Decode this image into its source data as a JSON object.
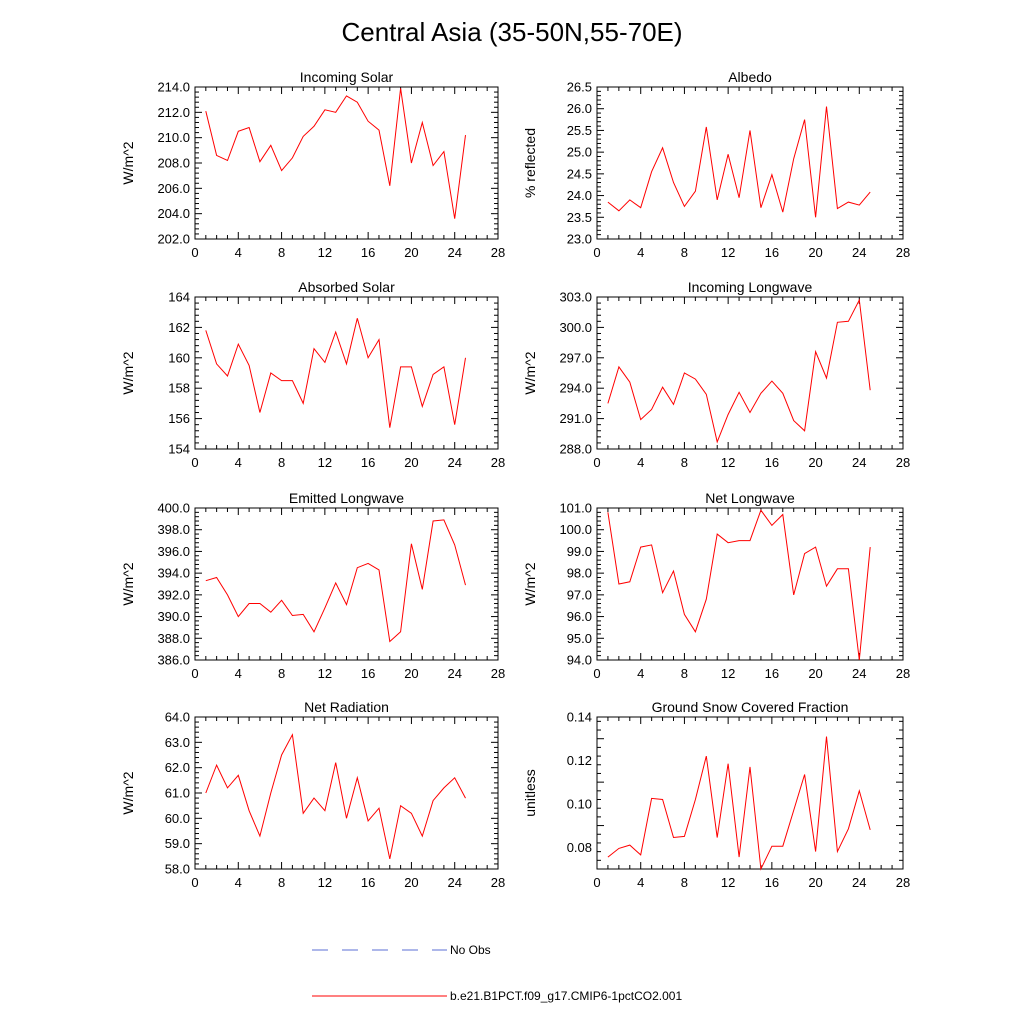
{
  "figure": {
    "title": "Central Asia (35-50N,55-70E)"
  },
  "colors": {
    "series": "#ff0000",
    "obs": "#5b6fd6",
    "axis": "#000000"
  },
  "chart_data": [
    {
      "type": "line",
      "title": "Incoming Solar",
      "xlabel": "",
      "ylabel": "W/m^2",
      "xlim": [
        0,
        28
      ],
      "ylim": [
        202,
        214
      ],
      "xticks": [
        0,
        4,
        8,
        12,
        16,
        20,
        24,
        28
      ],
      "yticks": [
        "202.0",
        "204.0",
        "206.0",
        "208.0",
        "210.0",
        "212.0",
        "214.0"
      ],
      "x": [
        1,
        2,
        3,
        4,
        5,
        6,
        7,
        8,
        9,
        10,
        11,
        12,
        13,
        14,
        15,
        16,
        17,
        18,
        19,
        20,
        21,
        22,
        23,
        24,
        25
      ],
      "series": [
        {
          "name": "b.e21.B1PCT.f09_g17.CMIP6-1pctCO2.001",
          "values": [
            212.1,
            208.6,
            208.2,
            210.5,
            210.8,
            208.1,
            209.4,
            207.4,
            208.4,
            210.1,
            210.9,
            212.2,
            212.0,
            213.3,
            212.8,
            211.3,
            210.6,
            206.2,
            213.9,
            208.0,
            211.2,
            207.8,
            208.9,
            203.6,
            210.2
          ]
        }
      ]
    },
    {
      "type": "line",
      "title": "Albedo",
      "xlabel": "",
      "ylabel": "% reflected",
      "xlim": [
        0,
        28
      ],
      "ylim": [
        23,
        26.5
      ],
      "xticks": [
        0,
        4,
        8,
        12,
        16,
        20,
        24,
        28
      ],
      "yticks": [
        "23.0",
        "23.5",
        "24.0",
        "24.5",
        "25.0",
        "25.5",
        "26.0",
        "26.5"
      ],
      "x": [
        1,
        2,
        3,
        4,
        5,
        6,
        7,
        8,
        9,
        10,
        11,
        12,
        13,
        14,
        15,
        16,
        17,
        18,
        19,
        20,
        21,
        22,
        23,
        24,
        25
      ],
      "series": [
        {
          "name": "b.e21.B1PCT.f09_g17.CMIP6-1pctCO2.001",
          "values": [
            23.85,
            23.65,
            23.9,
            23.72,
            24.55,
            25.1,
            24.3,
            23.75,
            24.1,
            25.58,
            23.9,
            24.95,
            23.95,
            25.5,
            23.72,
            24.48,
            23.62,
            24.85,
            25.75,
            23.5,
            26.05,
            23.7,
            23.85,
            23.78,
            24.08
          ]
        }
      ]
    },
    {
      "type": "line",
      "title": "Absorbed Solar",
      "xlabel": "",
      "ylabel": "W/m^2",
      "xlim": [
        0,
        28
      ],
      "ylim": [
        154,
        164
      ],
      "xticks": [
        0,
        4,
        8,
        12,
        16,
        20,
        24,
        28
      ],
      "yticks": [
        "154",
        "156",
        "158",
        "160",
        "162",
        "164"
      ],
      "x": [
        1,
        2,
        3,
        4,
        5,
        6,
        7,
        8,
        9,
        10,
        11,
        12,
        13,
        14,
        15,
        16,
        17,
        18,
        19,
        20,
        21,
        22,
        23,
        24,
        25
      ],
      "series": [
        {
          "name": "b.e21.B1PCT.f09_g17.CMIP6-1pctCO2.001",
          "values": [
            161.8,
            159.6,
            158.8,
            160.9,
            159.5,
            156.4,
            159.0,
            158.5,
            158.5,
            157.0,
            160.6,
            159.7,
            161.7,
            159.6,
            162.6,
            160.0,
            161.2,
            155.4,
            159.4,
            159.4,
            156.8,
            158.9,
            159.4,
            155.6,
            160.0
          ]
        }
      ]
    },
    {
      "type": "line",
      "title": "Incoming Longwave",
      "xlabel": "",
      "ylabel": "W/m^2",
      "xlim": [
        0,
        28
      ],
      "ylim": [
        288,
        303
      ],
      "xticks": [
        0,
        4,
        8,
        12,
        16,
        20,
        24,
        28
      ],
      "yticks": [
        "288.0",
        "291.0",
        "294.0",
        "297.0",
        "300.0",
        "303.0"
      ],
      "x": [
        1,
        2,
        3,
        4,
        5,
        6,
        7,
        8,
        9,
        10,
        11,
        12,
        13,
        14,
        15,
        16,
        17,
        18,
        19,
        20,
        21,
        22,
        23,
        24,
        25
      ],
      "series": [
        {
          "name": "b.e21.B1PCT.f09_g17.CMIP6-1pctCO2.001",
          "values": [
            292.5,
            296.1,
            294.6,
            290.9,
            291.9,
            294.1,
            292.4,
            295.5,
            294.9,
            293.4,
            288.7,
            291.4,
            293.6,
            291.6,
            293.5,
            294.7,
            293.5,
            290.8,
            289.8,
            297.6,
            295.0,
            300.5,
            300.6,
            302.7,
            293.8
          ]
        }
      ]
    },
    {
      "type": "line",
      "title": "Emitted Longwave",
      "xlabel": "",
      "ylabel": "W/m^2",
      "xlim": [
        0,
        28
      ],
      "ylim": [
        386,
        400
      ],
      "xticks": [
        0,
        4,
        8,
        12,
        16,
        20,
        24,
        28
      ],
      "yticks": [
        "386.0",
        "388.0",
        "390.0",
        "392.0",
        "394.0",
        "396.0",
        "398.0",
        "400.0"
      ],
      "x": [
        1,
        2,
        3,
        4,
        5,
        6,
        7,
        8,
        9,
        10,
        11,
        12,
        13,
        14,
        15,
        16,
        17,
        18,
        19,
        20,
        21,
        22,
        23,
        24,
        25
      ],
      "series": [
        {
          "name": "b.e21.B1PCT.f09_g17.CMIP6-1pctCO2.001",
          "values": [
            393.3,
            393.6,
            392.0,
            390.0,
            391.2,
            391.2,
            390.4,
            391.5,
            390.1,
            390.2,
            388.6,
            390.8,
            393.1,
            391.1,
            394.5,
            394.9,
            394.3,
            387.7,
            388.6,
            396.7,
            392.5,
            398.8,
            398.9,
            396.6,
            392.9
          ]
        }
      ]
    },
    {
      "type": "line",
      "title": "Net Longwave",
      "xlabel": "",
      "ylabel": "W/m^2",
      "xlim": [
        0,
        28
      ],
      "ylim": [
        94,
        101
      ],
      "xticks": [
        0,
        4,
        8,
        12,
        16,
        20,
        24,
        28
      ],
      "yticks": [
        "94.0",
        "95.0",
        "96.0",
        "97.0",
        "98.0",
        "99.0",
        "100.0",
        "101.0"
      ],
      "x": [
        1,
        2,
        3,
        4,
        5,
        6,
        7,
        8,
        9,
        10,
        11,
        12,
        13,
        14,
        15,
        16,
        17,
        18,
        19,
        20,
        21,
        22,
        23,
        24,
        25
      ],
      "series": [
        {
          "name": "b.e21.B1PCT.f09_g17.CMIP6-1pctCO2.001",
          "values": [
            100.8,
            97.5,
            97.6,
            99.2,
            99.3,
            97.1,
            98.1,
            96.1,
            95.3,
            96.8,
            99.8,
            99.4,
            99.5,
            99.5,
            100.9,
            100.2,
            100.7,
            97.0,
            98.9,
            99.2,
            97.4,
            98.2,
            98.2,
            94.0,
            99.2
          ]
        }
      ]
    },
    {
      "type": "line",
      "title": "Net Radiation",
      "xlabel": "",
      "ylabel": "W/m^2",
      "xlim": [
        0,
        28
      ],
      "ylim": [
        58,
        64
      ],
      "xticks": [
        0,
        4,
        8,
        12,
        16,
        20,
        24,
        28
      ],
      "yticks": [
        "58.0",
        "59.0",
        "60.0",
        "61.0",
        "62.0",
        "63.0",
        "64.0"
      ],
      "x": [
        1,
        2,
        3,
        4,
        5,
        6,
        7,
        8,
        9,
        10,
        11,
        12,
        13,
        14,
        15,
        16,
        17,
        18,
        19,
        20,
        21,
        22,
        23,
        24,
        25
      ],
      "series": [
        {
          "name": "b.e21.B1PCT.f09_g17.CMIP6-1pctCO2.001",
          "values": [
            61.0,
            62.1,
            61.2,
            61.7,
            60.3,
            59.3,
            61.0,
            62.5,
            63.3,
            60.2,
            60.8,
            60.3,
            62.2,
            60.0,
            61.6,
            59.9,
            60.4,
            58.4,
            60.5,
            60.2,
            59.3,
            60.7,
            61.2,
            61.6,
            60.8
          ]
        }
      ]
    },
    {
      "type": "line",
      "title": "Ground Snow Covered Fraction",
      "xlabel": "",
      "ylabel": "unitless",
      "xlim": [
        0,
        28
      ],
      "ylim": [
        0.07,
        0.14
      ],
      "xticks": [
        0,
        4,
        8,
        12,
        16,
        20,
        24,
        28
      ],
      "yticks": [
        "0.08",
        "0.10",
        "0.12",
        "0.14"
      ],
      "x": [
        1,
        2,
        3,
        4,
        5,
        6,
        7,
        8,
        9,
        10,
        11,
        12,
        13,
        14,
        15,
        16,
        17,
        18,
        19,
        20,
        21,
        22,
        23,
        24,
        25
      ],
      "series": [
        {
          "name": "b.e21.B1PCT.f09_g17.CMIP6-1pctCO2.001",
          "values": [
            0.0755,
            0.0795,
            0.081,
            0.0765,
            0.1025,
            0.102,
            0.0845,
            0.085,
            0.102,
            0.122,
            0.0845,
            0.1185,
            0.0755,
            0.117,
            0.07,
            0.0805,
            0.0805,
            0.097,
            0.1135,
            0.078,
            0.131,
            0.078,
            0.0885,
            0.106,
            0.088
          ]
        }
      ]
    }
  ],
  "legend": {
    "obs_label": "No Obs",
    "series_label": "b.e21.B1PCT.f09_g17.CMIP6-1pctCO2.001"
  }
}
